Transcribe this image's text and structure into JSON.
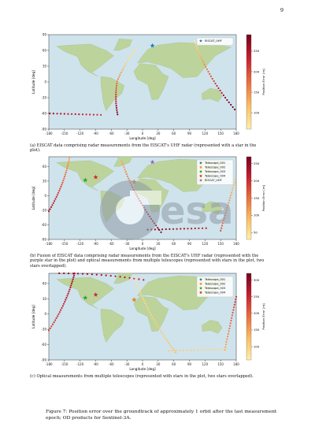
{
  "page_number": "9",
  "watermark_text": "esa",
  "figure_caption": "Figure 7: Position error over the groundtrack of approximately 1 orbit after the last measurement epoch; OD products for Sentinel-3A.",
  "panels": [
    {
      "caption": "(a) EISCAT data comprising radar measurements from the EISCAT's UHF radar (represented with a star in the plot).",
      "xlabel": "Longitude [deg]",
      "ylabel": "Latitude [deg]",
      "colorbar_label": "Position Error [m]",
      "legend": [
        {
          "name": "EISCAT_UHF",
          "color": "#1f77b4"
        }
      ],
      "colorbar_ticks": [
        "100",
        "150",
        "200",
        "250"
      ]
    },
    {
      "caption": "(b) Fusion of EISCAT data comprising radar measurements from the EISCAT's UHF radar (represented with the purple star in the plot) and optical measurements from multiple telescopes (represented with stars in the plot, two stars overlapped).",
      "xlabel": "Longitude [deg]",
      "ylabel": "Latitude [deg]",
      "colorbar_label": "Position Error [m]",
      "legend": [
        {
          "name": "Telescope_001",
          "color": "#1f77b4"
        },
        {
          "name": "Telescope_002",
          "color": "#ff7f0e"
        },
        {
          "name": "Telescope_003",
          "color": "#2ca02c"
        },
        {
          "name": "Telescope_004",
          "color": "#d62728"
        },
        {
          "name": "EISCAT_UHF",
          "color": "#9467bd"
        }
      ],
      "colorbar_ticks": [
        "50",
        "100",
        "150",
        "200",
        "250"
      ]
    },
    {
      "caption": "(c) Optical measurements from multiple telescopes (represented with stars in the plot, two stars overlapped).",
      "xlabel": "Longitude [deg]",
      "ylabel": "Latitude [deg]",
      "colorbar_label": "Position Error [m]",
      "legend": [
        {
          "name": "Telescope_001",
          "color": "#1f77b4"
        },
        {
          "name": "Telescope_002",
          "color": "#ff7f0e"
        },
        {
          "name": "Telescope_003",
          "color": "#2ca02c"
        },
        {
          "name": "Telescope_004",
          "color": "#d62728"
        }
      ],
      "colorbar_ticks": [
        "100",
        "150",
        "200",
        "250",
        "300"
      ]
    }
  ],
  "chart_data": [
    {
      "type": "scatter",
      "x_ticks": [
        "-180",
        "-150",
        "-120",
        "-90",
        "-60",
        "-30",
        "0",
        "30",
        "60",
        "90",
        "120",
        "150",
        "180"
      ],
      "y_ticks": [
        "-90",
        "-60",
        "-30",
        "0",
        "30",
        "60",
        "90"
      ],
      "xlim": [
        -180,
        180
      ],
      "ylim": [
        -90,
        90
      ],
      "colorbar_range": [
        60,
        290
      ],
      "stations": [
        {
          "name": "EISCAT_UHF",
          "lon": 19,
          "lat": 69,
          "color": "#1f77b4"
        }
      ]
    },
    {
      "type": "scatter",
      "x_ticks": [
        "-180",
        "-150",
        "-120",
        "-90",
        "-60",
        "-30",
        "0",
        "30",
        "60",
        "90",
        "120",
        "150",
        "180"
      ],
      "y_ticks": [
        "-90",
        "-60",
        "-30",
        "0",
        "30",
        "60"
      ],
      "xlim": [
        -180,
        180
      ],
      "ylim": [
        -90,
        80
      ],
      "colorbar_range": [
        30,
        270
      ],
      "stations": [
        {
          "name": "Telescope_001",
          "lon": -16,
          "lat": 28,
          "color": "#1f77b4"
        },
        {
          "name": "Telescope_002",
          "lon": -16,
          "lat": 28,
          "color": "#ff7f0e"
        },
        {
          "name": "Telescope_003",
          "lon": -110,
          "lat": 32,
          "color": "#2ca02c"
        },
        {
          "name": "Telescope_004",
          "lon": -90,
          "lat": 38,
          "color": "#d62728"
        },
        {
          "name": "EISCAT_UHF",
          "lon": 19,
          "lat": 69,
          "color": "#9467bd"
        }
      ]
    },
    {
      "type": "scatter",
      "x_ticks": [
        "-180",
        "-150",
        "-120",
        "-90",
        "-60",
        "-30",
        "0",
        "30",
        "60",
        "90",
        "120",
        "150",
        "180"
      ],
      "y_ticks": [
        "-90",
        "-60",
        "-30",
        "0",
        "30",
        "60"
      ],
      "xlim": [
        -180,
        180
      ],
      "ylim": [
        -90,
        80
      ],
      "colorbar_range": [
        60,
        320
      ],
      "stations": [
        {
          "name": "Telescope_001",
          "lon": -16,
          "lat": 28,
          "color": "#1f77b4"
        },
        {
          "name": "Telescope_002",
          "lon": -16,
          "lat": 28,
          "color": "#ff7f0e"
        },
        {
          "name": "Telescope_003",
          "lon": -110,
          "lat": 32,
          "color": "#2ca02c"
        },
        {
          "name": "Telescope_004",
          "lon": -90,
          "lat": 38,
          "color": "#d62728"
        }
      ]
    }
  ]
}
